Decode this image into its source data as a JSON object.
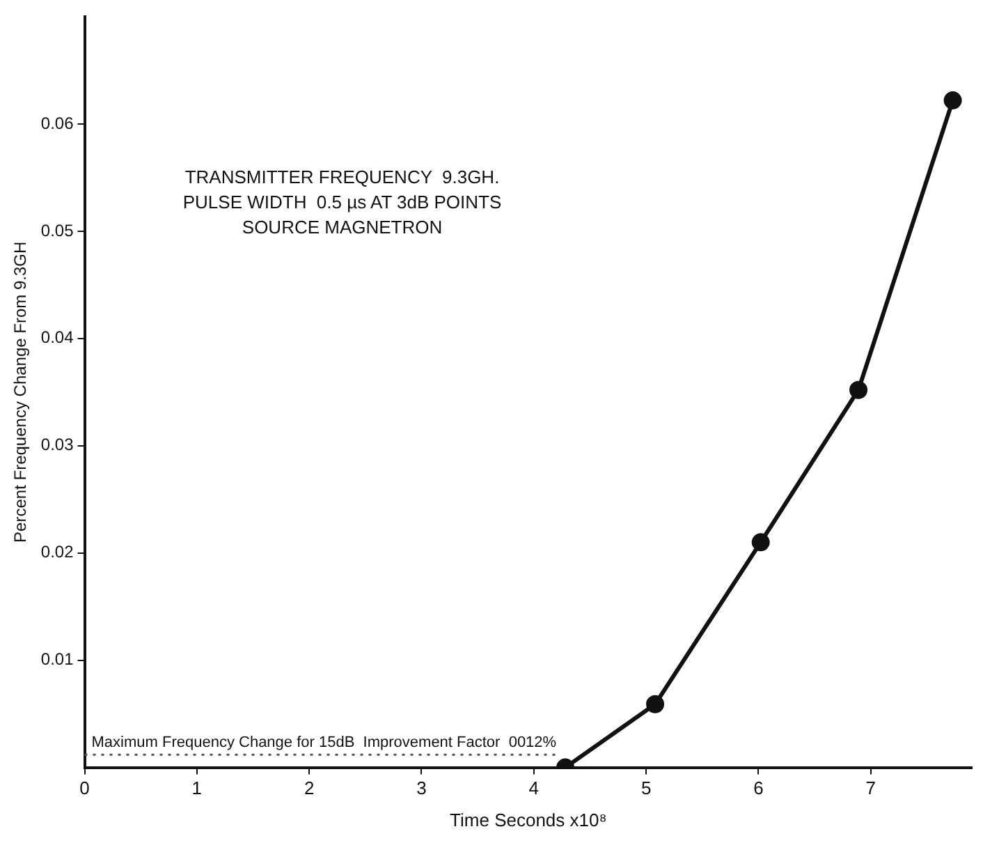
{
  "chart_data": {
    "type": "line",
    "xlabel": "Time Seconds x10⁸",
    "ylabel": "Percent Frequency Change From 9.3GH",
    "annotations": [
      "TRANSMITTER FREQUENCY  9.3GH.",
      "PULSE WIDTH  0.5 µs AT 3dB POINTS",
      "SOURCE MAGNETRON"
    ],
    "x": [
      4.28,
      5.08,
      6.02,
      6.89,
      7.73
    ],
    "series": [
      {
        "color": "#111111",
        "values": [
          0,
          0.0059,
          0.021,
          0.0352,
          0.0622
        ]
      }
    ],
    "xlim": [
      0,
      7.9
    ],
    "xticks": [
      0,
      1,
      2,
      3,
      4,
      5,
      6,
      7
    ],
    "ylim": [
      0,
      0.07
    ],
    "yticks": [
      0.01,
      0.02,
      0.03,
      0.04,
      0.05,
      0.06
    ],
    "ref_lines": [
      {
        "axis": "y",
        "value": 0.0012,
        "label": "Maximum Frequency Change for 15dB  Improvement Factor  0012%",
        "line_style": "dotted",
        "color": "#555555"
      }
    ],
    "marker": "circle",
    "line_style": "solid",
    "grid": false,
    "legend": false
  }
}
